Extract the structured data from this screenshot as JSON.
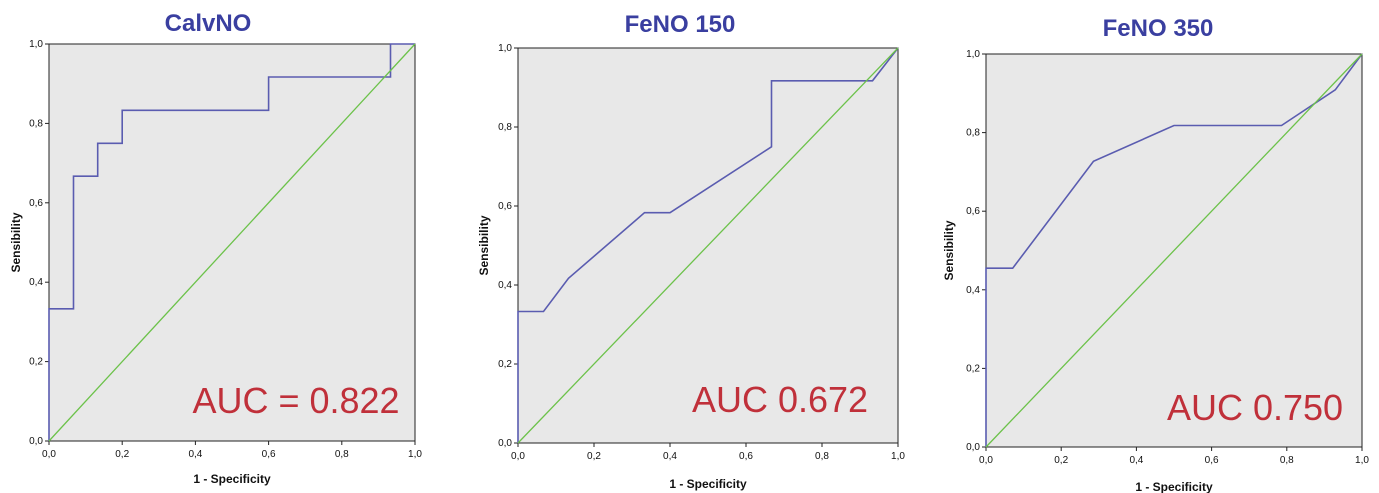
{
  "chart_data": [
    {
      "type": "line",
      "title": "CalvNO",
      "xlabel": "1 - Specificity",
      "ylabel": "Sensibility",
      "xlim": [
        0,
        1
      ],
      "ylim": [
        0,
        1
      ],
      "xticks": [
        "0,0",
        "0,2",
        "0,4",
        "0,6",
        "0,8",
        "1,0"
      ],
      "yticks": [
        "0,0",
        "0,2",
        "0,4",
        "0,6",
        "0,8",
        "1,0"
      ],
      "annotation": "AUC = 0.822",
      "series": [
        {
          "role": "roc",
          "x": [
            0,
            0,
            0.067,
            0.067,
            0.133,
            0.133,
            0.2,
            0.2,
            0.6,
            0.6,
            0.933,
            0.933,
            1.0
          ],
          "y": [
            0,
            0.333,
            0.333,
            0.667,
            0.667,
            0.75,
            0.75,
            0.833,
            0.833,
            0.917,
            0.917,
            1.0,
            1.0
          ]
        },
        {
          "role": "reference",
          "x": [
            0,
            1
          ],
          "y": [
            0,
            1
          ]
        }
      ]
    },
    {
      "type": "line",
      "title": "FeNO 150",
      "xlabel": "1 - Specificity",
      "ylabel": "Sensibility",
      "xlim": [
        0,
        1
      ],
      "ylim": [
        0,
        1
      ],
      "xticks": [
        "0,0",
        "0,2",
        "0,4",
        "0,6",
        "0,8",
        "1,0"
      ],
      "yticks": [
        "0,0",
        "0,2",
        "0,4",
        "0,6",
        "0,8",
        "1,0"
      ],
      "annotation": "AUC 0.672",
      "series": [
        {
          "role": "roc",
          "x": [
            0,
            0,
            0.067,
            0.133,
            0.333,
            0.4,
            0.667,
            0.667,
            0.933,
            1.0
          ],
          "y": [
            0,
            0.333,
            0.333,
            0.417,
            0.583,
            0.583,
            0.75,
            0.917,
            0.917,
            1.0
          ]
        },
        {
          "role": "reference",
          "x": [
            0,
            1
          ],
          "y": [
            0,
            1
          ]
        }
      ]
    },
    {
      "type": "line",
      "title": "FeNO 350",
      "xlabel": "1 - Specificity",
      "ylabel": "Sensibility",
      "xlim": [
        0,
        1
      ],
      "ylim": [
        0,
        1
      ],
      "xticks": [
        "0,0",
        "0,2",
        "0,4",
        "0,6",
        "0,8",
        "1,0"
      ],
      "yticks": [
        "0,0",
        "0,2",
        "0,4",
        "0,6",
        "0,8",
        "1,0"
      ],
      "annotation": "AUC 0.750",
      "series": [
        {
          "role": "roc",
          "x": [
            0,
            0,
            0.071,
            0.286,
            0.5,
            0.786,
            0.929,
            1.0
          ],
          "y": [
            0,
            0.455,
            0.455,
            0.727,
            0.818,
            0.818,
            0.909,
            1.0
          ]
        },
        {
          "role": "reference",
          "x": [
            0,
            1
          ],
          "y": [
            0,
            1
          ]
        }
      ]
    }
  ],
  "colors": {
    "roc": "#5a5cb0",
    "reference": "#6cc24a",
    "title": "#3a3fa0",
    "auc": "#c0303a",
    "plot_bg": "#e8e8e8"
  }
}
